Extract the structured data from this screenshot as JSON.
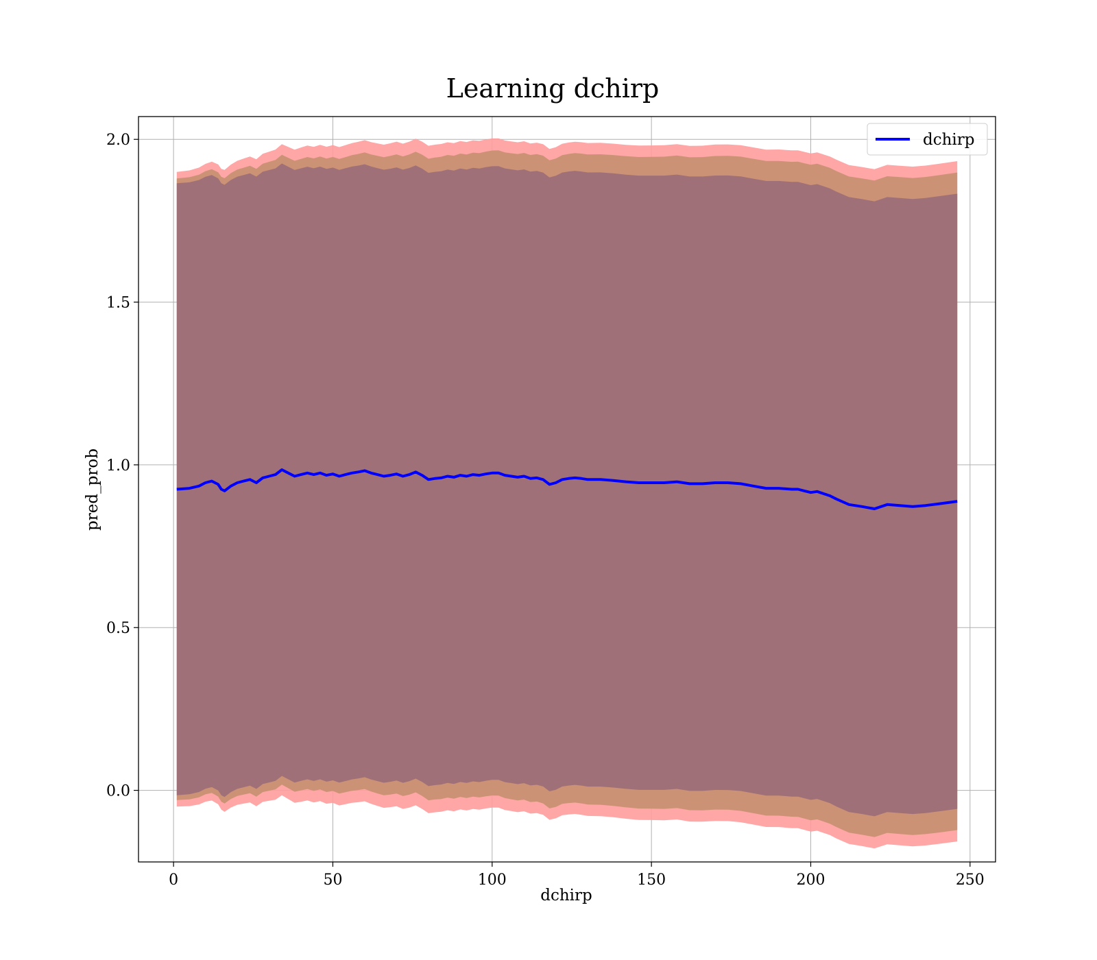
{
  "chart_data": {
    "type": "line",
    "title": "Learning dchirp",
    "xlabel": "dchirp",
    "ylabel": "pred_prob",
    "xlim": [
      -11,
      258
    ],
    "ylim": [
      -0.22,
      2.07
    ],
    "xticks": [
      "0",
      "50",
      "100",
      "150",
      "200",
      "250"
    ],
    "yticks": [
      "0.0",
      "0.5",
      "1.0",
      "1.5",
      "2.0"
    ],
    "grid": true,
    "legend_position": "top-right",
    "colors": {
      "line": "#0000ff",
      "outer_band": "#ff9c9c",
      "middle_band": "#c59070",
      "inner_band": "#a07078"
    },
    "series": [
      {
        "name": "dchirp",
        "x": [
          1,
          5,
          8,
          10,
          12,
          14,
          15,
          16,
          18,
          20,
          22,
          24,
          26,
          28,
          30,
          32,
          34,
          36,
          38,
          40,
          42,
          44,
          46,
          48,
          50,
          52,
          54,
          56,
          58,
          60,
          62,
          64,
          66,
          68,
          70,
          72,
          74,
          76,
          78,
          80,
          82,
          84,
          86,
          88,
          90,
          92,
          94,
          96,
          98,
          100,
          102,
          104,
          106,
          108,
          110,
          112,
          114,
          116,
          118,
          120,
          122,
          124,
          126,
          128,
          130,
          134,
          138,
          142,
          146,
          150,
          154,
          158,
          162,
          166,
          170,
          174,
          178,
          182,
          186,
          190,
          194,
          196,
          198,
          200,
          202,
          206,
          208,
          212,
          216,
          220,
          224,
          228,
          232,
          236,
          240,
          246
        ],
        "values": [
          0.925,
          0.928,
          0.935,
          0.945,
          0.95,
          0.94,
          0.925,
          0.92,
          0.935,
          0.945,
          0.95,
          0.955,
          0.945,
          0.96,
          0.965,
          0.97,
          0.985,
          0.975,
          0.965,
          0.97,
          0.975,
          0.97,
          0.975,
          0.968,
          0.972,
          0.965,
          0.97,
          0.975,
          0.978,
          0.982,
          0.975,
          0.97,
          0.965,
          0.968,
          0.972,
          0.965,
          0.97,
          0.978,
          0.968,
          0.955,
          0.958,
          0.96,
          0.965,
          0.962,
          0.968,
          0.965,
          0.97,
          0.968,
          0.972,
          0.975,
          0.975,
          0.968,
          0.965,
          0.962,
          0.965,
          0.958,
          0.96,
          0.955,
          0.94,
          0.945,
          0.955,
          0.958,
          0.96,
          0.958,
          0.955,
          0.955,
          0.952,
          0.948,
          0.945,
          0.945,
          0.945,
          0.948,
          0.942,
          0.942,
          0.945,
          0.945,
          0.942,
          0.935,
          0.928,
          0.928,
          0.925,
          0.925,
          0.92,
          0.915,
          0.918,
          0.905,
          0.895,
          0.878,
          0.872,
          0.865,
          0.878,
          0.875,
          0.872,
          0.875,
          0.88,
          0.888
        ]
      }
    ],
    "bands": [
      {
        "name": "outer",
        "offsets": [
          0.975,
          1.005,
          1.025,
          1.03,
          1.04,
          1.045
        ]
      },
      {
        "name": "middle",
        "offsets": [
          0.955,
          0.97,
          0.985,
          0.995,
          1.005,
          1.01
        ]
      },
      {
        "name": "inner",
        "offsets": [
          0.94,
          0.945
        ]
      }
    ]
  }
}
